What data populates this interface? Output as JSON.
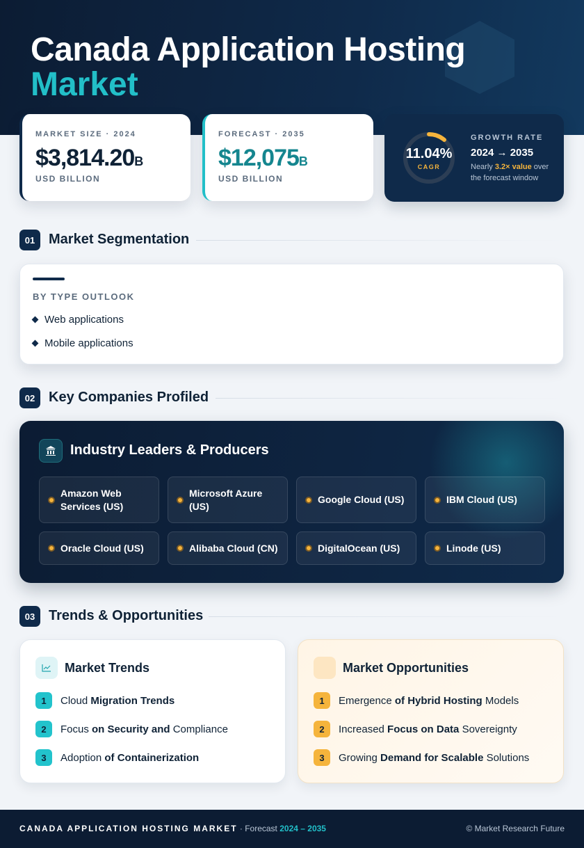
{
  "header": {
    "title_line1": "Canada Application Hosting",
    "title_line2": "Market"
  },
  "stats": {
    "market_size": {
      "label": "MARKET SIZE · 2024",
      "value": "$3,814.20",
      "suffix": "B",
      "unit": "USD BILLION"
    },
    "forecast": {
      "label": "FORECAST · 2035",
      "value": "$12,075",
      "suffix": "B",
      "unit": "USD BILLION"
    },
    "growth": {
      "cagr": "11.04%",
      "cagr_label": "CAGR",
      "label": "GROWTH RATE",
      "range": "2024 → 2035",
      "note": [
        "Nearly ",
        "3.2× value",
        " over the forecast window"
      ]
    }
  },
  "segmentation": {
    "number": "01",
    "title": "Market Segmentation",
    "subtitle": "BY TYPE OUTLOOK",
    "items": [
      "Web applications",
      "Mobile applications"
    ]
  },
  "companies": {
    "number": "02",
    "title": "Key Companies Profiled",
    "panel_title": "Industry Leaders & Producers",
    "items": [
      "Amazon Web Services (US)",
      "Microsoft Azure (US)",
      "Google Cloud (US)",
      "IBM Cloud (US)",
      "Oracle Cloud (US)",
      "Alibaba Cloud (CN)",
      "DigitalOcean (US)",
      "Linode (US)"
    ]
  },
  "trends": {
    "number": "03",
    "title": "Trends & Opportunities",
    "market_trends": {
      "title": "Market Trends",
      "items": [
        {
          "num": "1",
          "parts": [
            "Cloud ",
            "Migration Trends"
          ]
        },
        {
          "num": "2",
          "parts": [
            "Focus ",
            "on Security and",
            " Compliance"
          ]
        },
        {
          "num": "3",
          "parts": [
            "Adoption ",
            "of Containerization"
          ]
        }
      ]
    },
    "market_opportunities": {
      "title": "Market Opportunities",
      "items": [
        {
          "num": "1",
          "parts": [
            "Emergence ",
            "of Hybrid Hosting",
            " Models"
          ]
        },
        {
          "num": "2",
          "parts": [
            "Increased ",
            "Focus on Data",
            " Sovereignty"
          ]
        },
        {
          "num": "3",
          "parts": [
            "Growing ",
            "Demand for Scalable",
            " Solutions"
          ]
        }
      ]
    }
  },
  "footer": {
    "title": "CANADA APPLICATION HOSTING MARKET",
    "forecast_text": " · Forecast ",
    "forecast_range": "2024 – 2035",
    "credit": "© Market Research Future"
  }
}
